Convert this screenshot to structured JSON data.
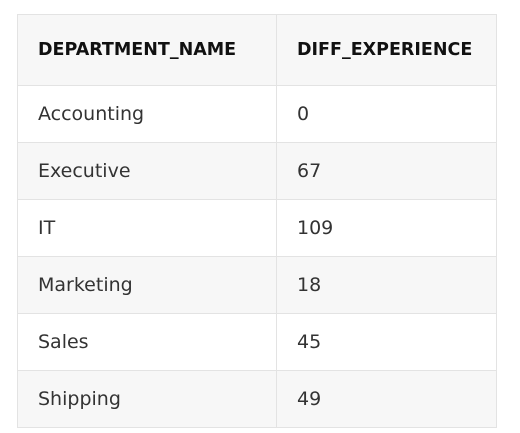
{
  "table": {
    "columns": [
      "DEPARTMENT_NAME",
      "DIFF_EXPERIENCE"
    ],
    "rows": [
      [
        "Accounting",
        "0"
      ],
      [
        "Executive",
        "67"
      ],
      [
        "IT",
        "109"
      ],
      [
        "Marketing",
        "18"
      ],
      [
        "Sales",
        "45"
      ],
      [
        "Shipping",
        "49"
      ]
    ]
  }
}
